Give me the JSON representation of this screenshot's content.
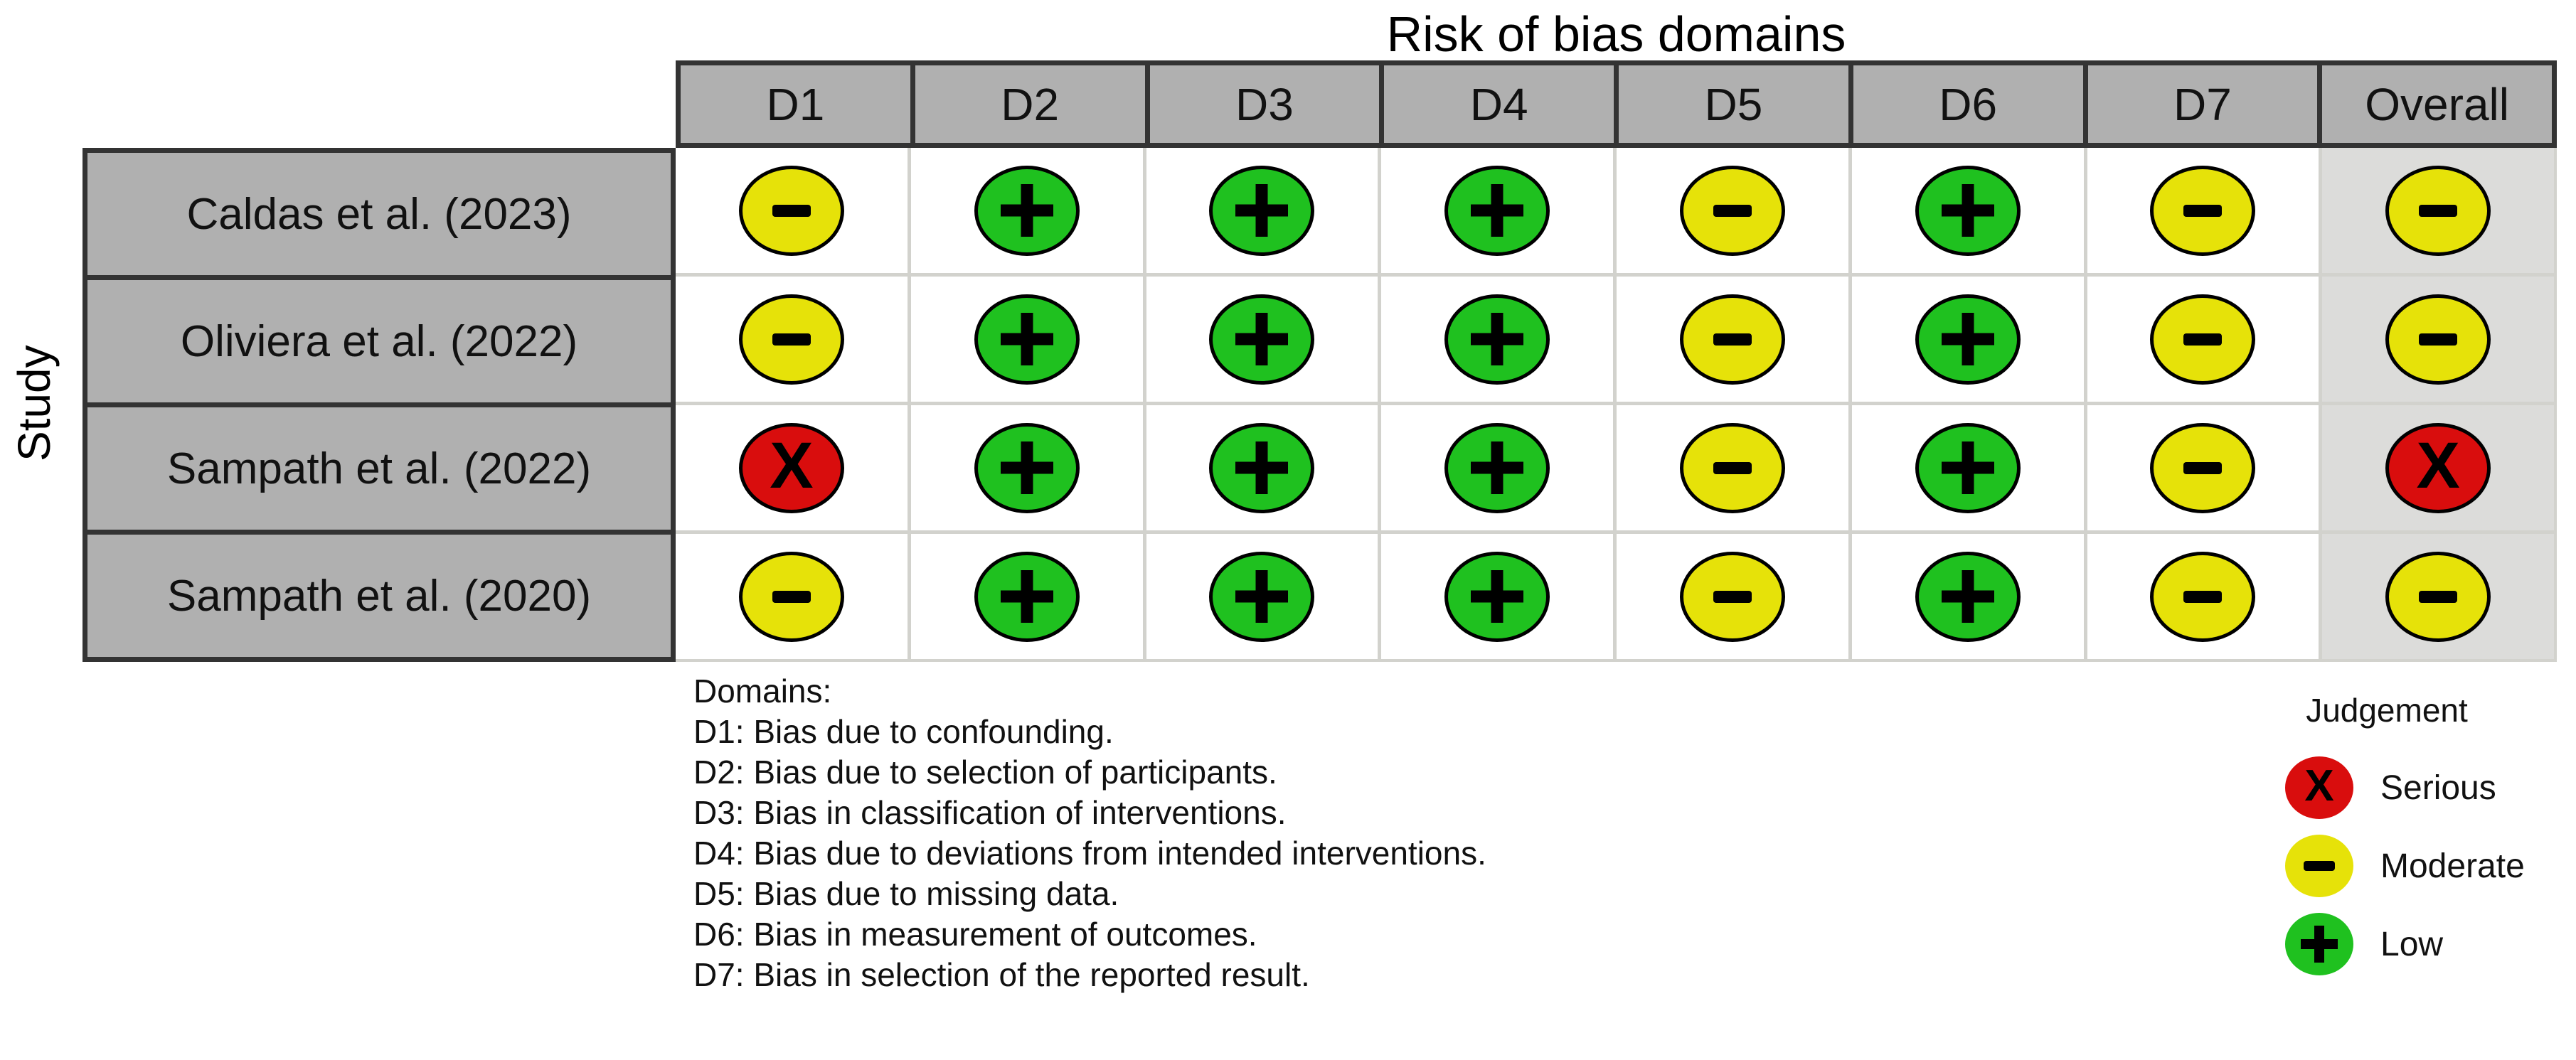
{
  "chart_data": {
    "type": "table",
    "title": "Risk of bias domains",
    "y_axis_label": "Study",
    "columns": [
      "D1",
      "D2",
      "D3",
      "D4",
      "D5",
      "D6",
      "D7",
      "Overall"
    ],
    "studies": [
      "Caldas et al. (2023)",
      "Oliviera et al. (2022)",
      "Sampath et al. (2022)",
      "Sampath et al. (2020)"
    ],
    "judgements": [
      [
        "moderate",
        "low",
        "low",
        "low",
        "moderate",
        "low",
        "moderate",
        "moderate"
      ],
      [
        "moderate",
        "low",
        "low",
        "low",
        "moderate",
        "low",
        "moderate",
        "moderate"
      ],
      [
        "serious",
        "low",
        "low",
        "low",
        "moderate",
        "low",
        "moderate",
        "serious"
      ],
      [
        "moderate",
        "low",
        "low",
        "low",
        "moderate",
        "low",
        "moderate",
        "moderate"
      ]
    ]
  },
  "judgement_styles": {
    "serious": {
      "label": "Serious",
      "symbol": "x",
      "color": "#d90d0d"
    },
    "moderate": {
      "label": "Moderate",
      "symbol": "minus",
      "color": "#e6e209"
    },
    "low": {
      "label": "Low",
      "symbol": "plus",
      "color": "#1fc11f"
    }
  },
  "legend": {
    "title": "Judgement",
    "items": [
      "serious",
      "moderate",
      "low"
    ]
  },
  "domains_note": {
    "heading": "Domains:",
    "items": [
      "D1: Bias due to confounding.",
      "D2: Bias due to selection of participants.",
      "D3: Bias in classification of interventions.",
      "D4: Bias due to deviations from intended interventions.",
      "D5: Bias due to missing data.",
      "D6: Bias in measurement of outcomes.",
      "D7: Bias in selection of the reported result."
    ]
  },
  "colors": {
    "header_fill": "#b0b0b0",
    "dark_border": "#333333",
    "grid_line": "#d2d2cd",
    "overall_column_fill": "#dcdcda",
    "serious": "#d90d0d",
    "moderate": "#e6e209",
    "low": "#1fc11f"
  }
}
